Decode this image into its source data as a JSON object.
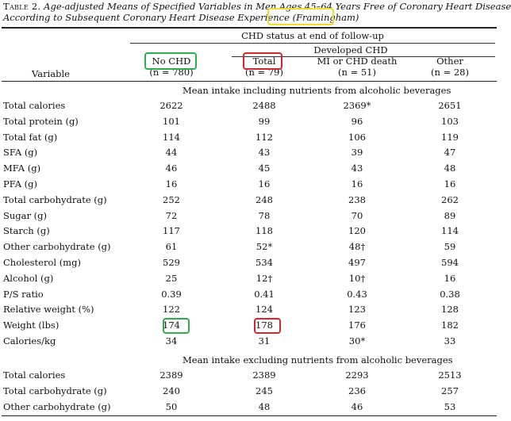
{
  "caption": {
    "table_label": "Table 2.",
    "line1": "Age-adjusted Means of Specified Variables in Men Ages 45–64 Years Free of Coronary Heart Disease",
    "line2_prefix": "According to Subsequent Coronary Heart Disease Experience",
    "line2_highlight": "(Framingham)"
  },
  "header": {
    "chd_status": "CHD status at end of follow-up",
    "developed_chd": "Developed CHD",
    "variable": "Variable",
    "columns": [
      {
        "label": "No CHD",
        "n": "(n = 780)"
      },
      {
        "label": "Total",
        "n": "(n = 79)"
      },
      {
        "label": "MI or CHD death",
        "n": "(n = 51)"
      },
      {
        "label": "Other",
        "n": "(n = 28)"
      }
    ]
  },
  "section1": {
    "title": "Mean intake including nutrients from alcoholic beverages",
    "rows": [
      {
        "variable": "Total calories",
        "values": [
          "2622",
          "2488",
          "2369*",
          "2651"
        ]
      },
      {
        "variable": "Total protein (g)",
        "values": [
          "101",
          "99",
          "96",
          "103"
        ]
      },
      {
        "variable": "Total fat (g)",
        "values": [
          "114",
          "112",
          "106",
          "119"
        ]
      },
      {
        "variable": "SFA (g)",
        "values": [
          "44",
          "43",
          "39",
          "47"
        ]
      },
      {
        "variable": "MFA (g)",
        "values": [
          "46",
          "45",
          "43",
          "48"
        ]
      },
      {
        "variable": "PFA (g)",
        "values": [
          "16",
          "16",
          "16",
          "16"
        ]
      },
      {
        "variable": "Total carbohydrate (g)",
        "values": [
          "252",
          "248",
          "238",
          "262"
        ]
      },
      {
        "variable": "Sugar (g)",
        "values": [
          "72",
          "78",
          "70",
          "89"
        ]
      },
      {
        "variable": "Starch (g)",
        "values": [
          "117",
          "118",
          "120",
          "114"
        ]
      },
      {
        "variable": "Other carbohydrate (g)",
        "values": [
          "61",
          "52*",
          "48†",
          "59"
        ]
      },
      {
        "variable": "Cholesterol (mg)",
        "values": [
          "529",
          "534",
          "497",
          "594"
        ]
      },
      {
        "variable": "Alcohol (g)",
        "values": [
          "25",
          "12†",
          "10†",
          "16"
        ]
      },
      {
        "variable": "P/S ratio",
        "values": [
          "0.39",
          "0.41",
          "0.43",
          "0.38"
        ]
      },
      {
        "variable": "Relative weight (%)",
        "values": [
          "122",
          "124",
          "123",
          "128"
        ]
      },
      {
        "variable": "Weight (lbs)",
        "values": [
          "174",
          "178",
          "176",
          "182"
        ]
      },
      {
        "variable": "Calories/kg",
        "values": [
          "34",
          "31",
          "30*",
          "33"
        ]
      }
    ]
  },
  "section2": {
    "title": "Mean intake excluding nutrients from alcoholic beverages",
    "rows": [
      {
        "variable": "Total calories",
        "values": [
          "2389",
          "2389",
          "2293",
          "2513"
        ]
      },
      {
        "variable": "Total carbohydrate (g)",
        "values": [
          "240",
          "245",
          "236",
          "257"
        ]
      },
      {
        "variable": "Other carbohydrate (g)",
        "values": [
          "50",
          "48",
          "46",
          "53"
        ]
      }
    ]
  },
  "highlight_colors": {
    "green": "#2fae48",
    "red": "#d3262e",
    "yellow": "#f2dc2a"
  }
}
